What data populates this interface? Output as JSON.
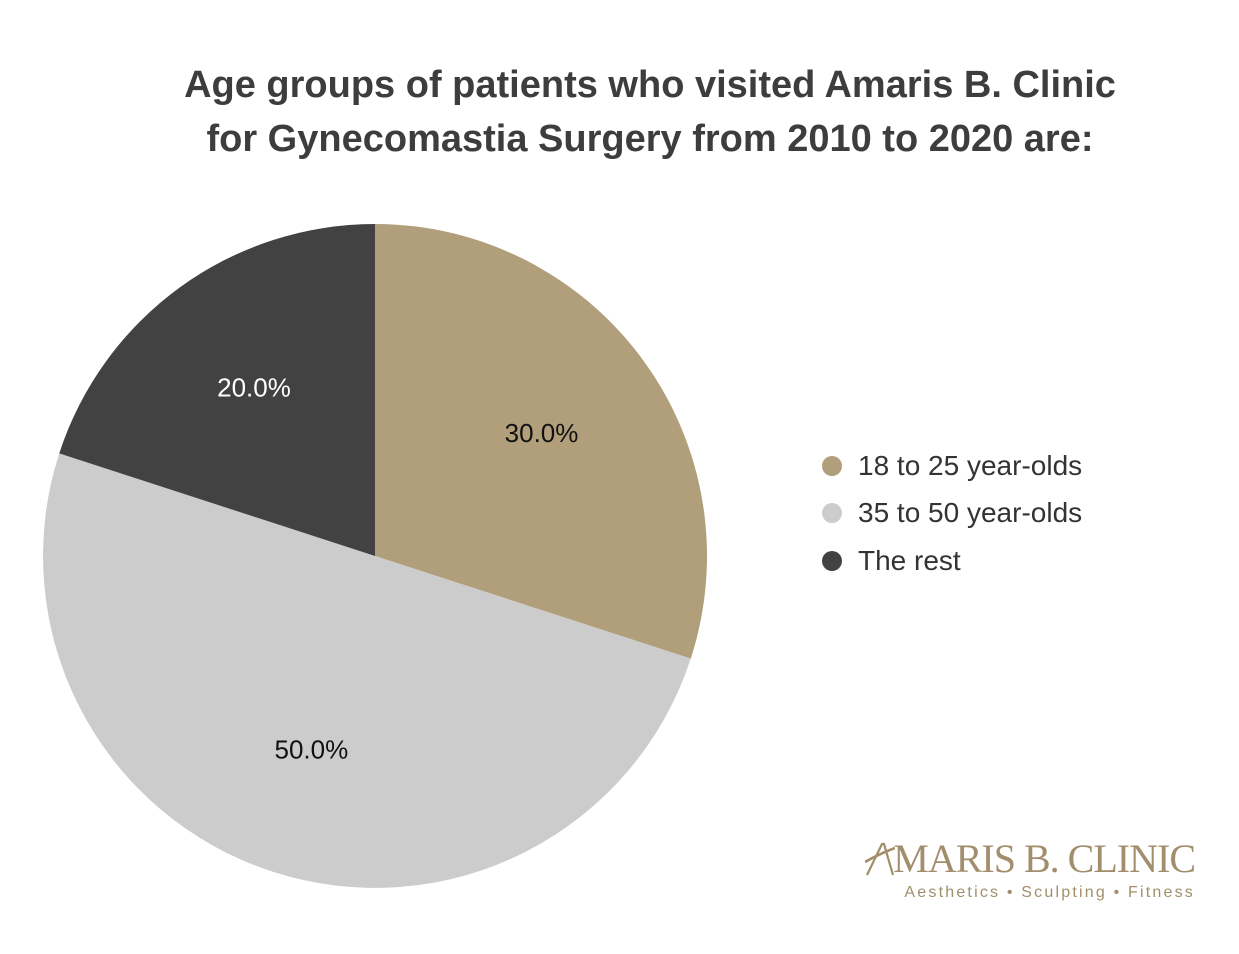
{
  "chart_data": {
    "type": "pie",
    "title_lines": [
      "Age groups of patients who visited Amaris B. Clinic",
      "for Gynecomastia Surgery from 2010 to 2020 are:"
    ],
    "slices": [
      {
        "label": "18 to 25 year-olds",
        "value": 30.0,
        "display": "30.0%",
        "color": "#b19f7b",
        "text_color": "#111111"
      },
      {
        "label": "35 to 50 year-olds",
        "value": 50.0,
        "display": "50.0%",
        "color": "#cccccc",
        "text_color": "#111111"
      },
      {
        "label": "The rest",
        "value": 20.0,
        "display": "20.0%",
        "color": "#424242",
        "text_color": "#ffffff"
      }
    ],
    "start_angle": "12 o'clock",
    "direction": "clockwise",
    "legend_position": "right"
  },
  "brand": {
    "name": "MARIS B. CLINIC",
    "tagline": "Aesthetics • Sculpting • Fitness",
    "color": "#a28e6c"
  }
}
